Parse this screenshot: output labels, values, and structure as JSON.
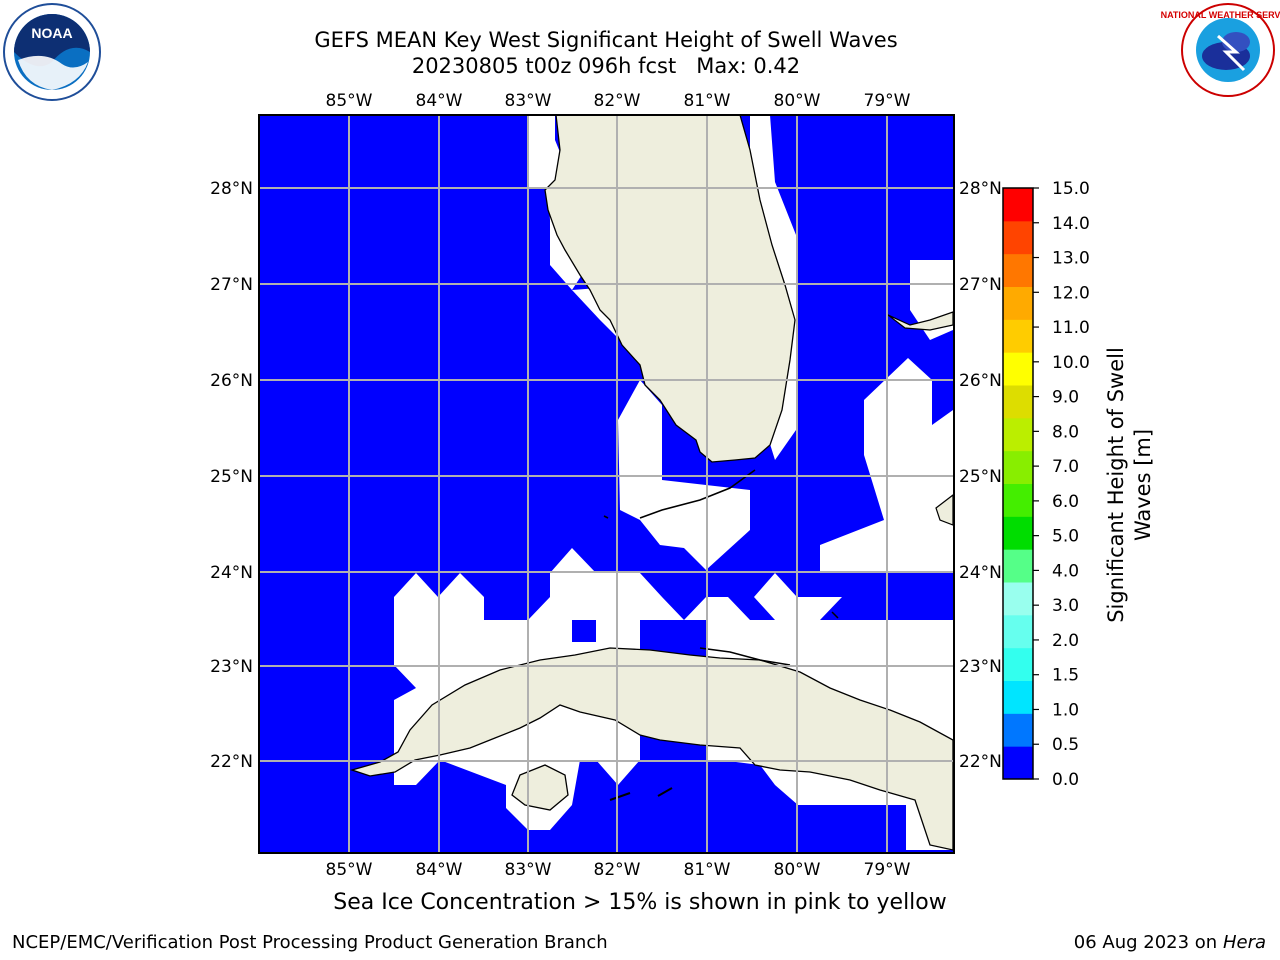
{
  "title": {
    "line1": "GEFS MEAN Key West Significant Height of Swell Waves",
    "run": "20230805 t00z 096h fcst",
    "max": "Max: 0.42"
  },
  "logos": {
    "left_icon": "noaa-logo",
    "left_text": "NOAA",
    "right_icon": "nws-logo",
    "right_text": "NATIONAL WEATHER SERVICE"
  },
  "map": {
    "lon_labels": [
      "85°W",
      "84°W",
      "83°W",
      "82°W",
      "81°W",
      "80°W",
      "79°W"
    ],
    "lat_labels": [
      "28°N",
      "27°N",
      "26°N",
      "25°N",
      "24°N",
      "23°N",
      "22°N"
    ],
    "ocean_color": "#0000ff",
    "land_color": "#eeeedd",
    "grid_color": "#b0b0b0"
  },
  "colorbar": {
    "label_line1": "Significant Height of Swell",
    "label_line2": "Waves [m]",
    "ticks": [
      "0.0",
      "0.5",
      "1.0",
      "1.5",
      "2.0",
      "3.0",
      "4.0",
      "5.0",
      "6.0",
      "7.0",
      "8.0",
      "9.0",
      "10.0",
      "11.0",
      "12.0",
      "13.0",
      "14.0",
      "15.0"
    ],
    "colors": [
      "#0000ff",
      "#0077ff",
      "#00e5ff",
      "#33ffee",
      "#66ffee",
      "#99ffee",
      "#55ff88",
      "#00dd00",
      "#44ee00",
      "#88ee00",
      "#bbee00",
      "#dddd00",
      "#ffff00",
      "#ffcc00",
      "#ffaa00",
      "#ff7700",
      "#ff4400",
      "#ff0000"
    ]
  },
  "footer": {
    "note": "Sea Ice Concentration > 15% is shown in pink to yellow",
    "left": "NCEP/EMC/Verification Post Processing Product Generation Branch",
    "right_date": "06 Aug 2023 on",
    "right_host": "Hera"
  }
}
